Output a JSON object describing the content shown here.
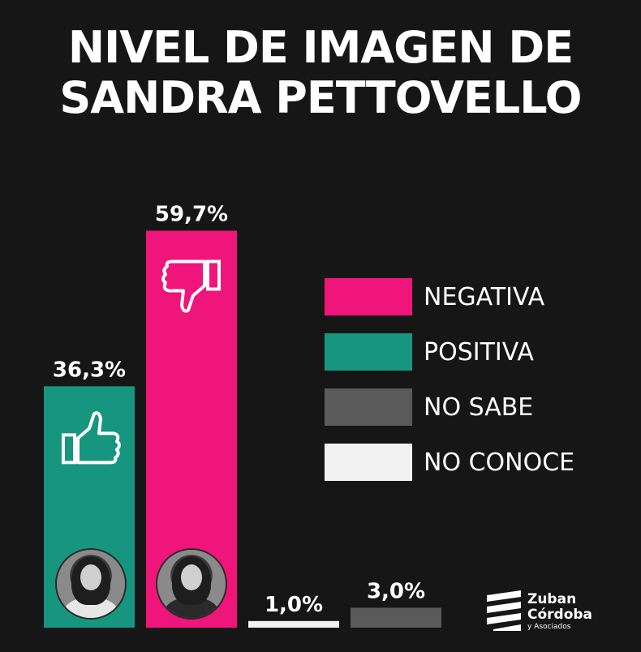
{
  "title": {
    "line1": "NIVEL DE IMAGEN DE",
    "line2": "SANDRA PETTOVELLO"
  },
  "chart_data": {
    "type": "bar",
    "categories": [
      "POSITIVA",
      "NEGATIVA",
      "NO CONOCE",
      "NO SABE"
    ],
    "values": [
      36.3,
      59.7,
      1.0,
      3.0
    ],
    "value_labels": [
      "36,3%",
      "59,7%",
      "1,0%",
      "3,0%"
    ],
    "colors": [
      "#16967e",
      "#f0157a",
      "#f2f2f2",
      "#5a5a5a"
    ],
    "legend": [
      {
        "label": "NEGATIVA",
        "color": "#f0157a"
      },
      {
        "label": "POSITIVA",
        "color": "#16967e"
      },
      {
        "label": "NO SABE",
        "color": "#5a5a5a"
      },
      {
        "label": "NO CONOCE",
        "color": "#f2f2f2"
      }
    ],
    "legend_position": "right",
    "ylim": [
      0,
      60
    ],
    "grid": false,
    "icons": [
      "thumbs-up-icon",
      "thumbs-down-icon",
      "",
      ""
    ]
  },
  "logo": {
    "line1": "Zuban",
    "line2": "Córdoba",
    "line3": "y Asociados"
  }
}
